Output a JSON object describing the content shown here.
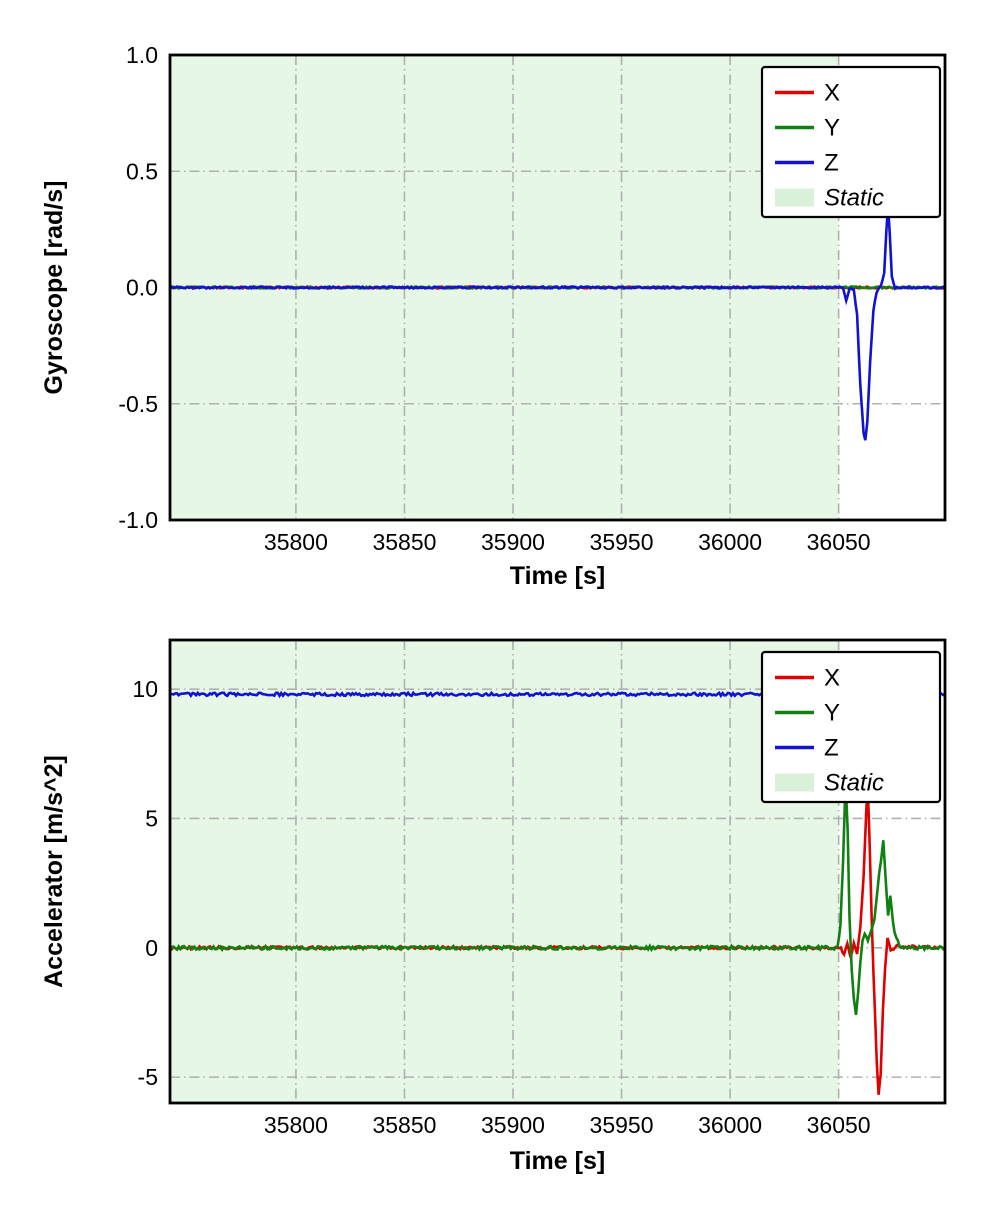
{
  "colors": {
    "x": "#e00000",
    "y": "#108010",
    "z": "#1212d0",
    "grid": "#b0b0b0",
    "axis": "#000000",
    "static_fill": "#e6f7e6",
    "static_patch": "#d9f0d9"
  },
  "chart_data": [
    {
      "type": "line",
      "name": "gyroscope",
      "xlabel": "Time [s]",
      "ylabel": "Gyroscope [rad/s]",
      "xlim": [
        35742,
        36099
      ],
      "ylim": [
        -1.0,
        1.0
      ],
      "xticks": [
        35800,
        35850,
        35900,
        35950,
        36000,
        36050
      ],
      "xtick_labels": [
        "35800",
        "35850",
        "35900",
        "35950",
        "36000",
        "36050"
      ],
      "yticks": [
        -1.0,
        -0.5,
        0.0,
        0.5,
        1.0
      ],
      "ytick_labels": [
        "-1.0",
        "-0.5",
        "0.0",
        "0.5",
        "1.0"
      ],
      "grid": "dash-dot",
      "static_region": {
        "label": "Static",
        "x0": 35742,
        "x1": 36050
      },
      "legend": {
        "position": "top-right",
        "entries": [
          {
            "label": "X",
            "type": "line",
            "color": "x"
          },
          {
            "label": "Y",
            "type": "line",
            "color": "y"
          },
          {
            "label": "Z",
            "type": "line",
            "color": "z"
          },
          {
            "label": "Static",
            "type": "patch",
            "italic": true
          }
        ]
      },
      "series": [
        {
          "name": "X",
          "color": "x",
          "noise": 0.004,
          "points": [
            [
              35742,
              0
            ],
            [
              36099,
              0
            ]
          ]
        },
        {
          "name": "Y",
          "color": "y",
          "noise": 0.004,
          "points": [
            [
              35742,
              0
            ],
            [
              36099,
              0
            ]
          ]
        },
        {
          "name": "Z",
          "color": "z",
          "noise": 0.004,
          "points": [
            [
              35742,
              0
            ],
            [
              36052,
              0
            ],
            [
              36053.5,
              -0.055
            ],
            [
              36055,
              -0.005
            ],
            [
              36057,
              -0.01
            ],
            [
              36058.5,
              -0.12
            ],
            [
              36060,
              -0.42
            ],
            [
              36061.5,
              -0.63
            ],
            [
              36062.3,
              -0.655
            ],
            [
              36063.2,
              -0.58
            ],
            [
              36064.5,
              -0.32
            ],
            [
              36066,
              -0.1
            ],
            [
              36067.5,
              -0.02
            ],
            [
              36069.5,
              0.005
            ],
            [
              36071,
              0.06
            ],
            [
              36072,
              0.25
            ],
            [
              36072.8,
              0.35
            ],
            [
              36073.6,
              0.22
            ],
            [
              36074.5,
              0.05
            ],
            [
              36076,
              0
            ],
            [
              36099,
              0
            ]
          ]
        }
      ]
    },
    {
      "type": "line",
      "name": "accelerator",
      "xlabel": "Time [s]",
      "ylabel": "Accelerator [m/s^2]",
      "xlim": [
        35742,
        36099
      ],
      "ylim": [
        -6.0,
        11.9
      ],
      "xticks": [
        35800,
        35850,
        35900,
        35950,
        36000,
        36050
      ],
      "xtick_labels": [
        "35800",
        "35850",
        "35900",
        "35950",
        "36000",
        "36050"
      ],
      "yticks": [
        -5,
        0,
        5,
        10
      ],
      "ytick_labels": [
        "-5",
        "0",
        "5",
        "10"
      ],
      "grid": "dash-dot",
      "static_region": {
        "label": "Static",
        "x0": 35742,
        "x1": 36050
      },
      "legend": {
        "position": "top-right",
        "entries": [
          {
            "label": "X",
            "type": "line",
            "color": "x"
          },
          {
            "label": "Y",
            "type": "line",
            "color": "y"
          },
          {
            "label": "Z",
            "type": "line",
            "color": "z"
          },
          {
            "label": "Static",
            "type": "patch",
            "italic": true
          }
        ]
      },
      "series": [
        {
          "name": "X",
          "color": "x",
          "noise": 0.055,
          "points": [
            [
              35742,
              0
            ],
            [
              36051,
              0
            ],
            [
              36052.5,
              -0.25
            ],
            [
              36054,
              0.2
            ],
            [
              36055.5,
              -0.35
            ],
            [
              36057,
              0.15
            ],
            [
              36058.5,
              -0.2
            ],
            [
              36060,
              0.8
            ],
            [
              36061.5,
              2.8
            ],
            [
              36062.8,
              5.4
            ],
            [
              36063.4,
              6.3
            ],
            [
              36064.2,
              4.2
            ],
            [
              36065.2,
              1.2
            ],
            [
              36066,
              -0.9
            ],
            [
              36066.8,
              -2.6
            ],
            [
              36067.6,
              -4.4
            ],
            [
              36068.4,
              -5.7
            ],
            [
              36069.4,
              -4.9
            ],
            [
              36070.4,
              -2.4
            ],
            [
              36071.4,
              -0.8
            ],
            [
              36072.5,
              0.4
            ],
            [
              36074,
              -0.15
            ],
            [
              36076,
              0.05
            ],
            [
              36099,
              0
            ]
          ]
        },
        {
          "name": "Y",
          "color": "y",
          "noise": 0.07,
          "points": [
            [
              35742,
              0
            ],
            [
              36049.5,
              0
            ],
            [
              36050.8,
              0.9
            ],
            [
              36052,
              3.2
            ],
            [
              36053.2,
              6.6
            ],
            [
              36054.2,
              4.5
            ],
            [
              36055,
              1.2
            ],
            [
              36056,
              -0.8
            ],
            [
              36057,
              -1.9
            ],
            [
              36058,
              -2.6
            ],
            [
              36059,
              -1.7
            ],
            [
              36060,
              -0.6
            ],
            [
              36061,
              0.3
            ],
            [
              36062,
              0.55
            ],
            [
              36063.5,
              0.3
            ],
            [
              36065,
              0.7
            ],
            [
              36066.5,
              1.1
            ],
            [
              36068,
              2.3
            ],
            [
              36069.5,
              3.4
            ],
            [
              36070.6,
              4.15
            ],
            [
              36071.8,
              2.4
            ],
            [
              36072.8,
              1.3
            ],
            [
              36073.8,
              1.95
            ],
            [
              36075,
              1.0
            ],
            [
              36076.5,
              0.35
            ],
            [
              36078,
              0.1
            ],
            [
              36080,
              0
            ],
            [
              36099,
              0
            ]
          ]
        },
        {
          "name": "Z",
          "color": "z",
          "noise": 0.06,
          "points": [
            [
              35742,
              9.8
            ],
            [
              36055,
              9.8
            ],
            [
              36058,
              9.75
            ],
            [
              36060,
              9.85
            ],
            [
              36062,
              9.6
            ],
            [
              36064,
              9.85
            ],
            [
              36066,
              9.75
            ],
            [
              36068,
              9.85
            ],
            [
              36099,
              9.8
            ]
          ]
        }
      ]
    }
  ]
}
